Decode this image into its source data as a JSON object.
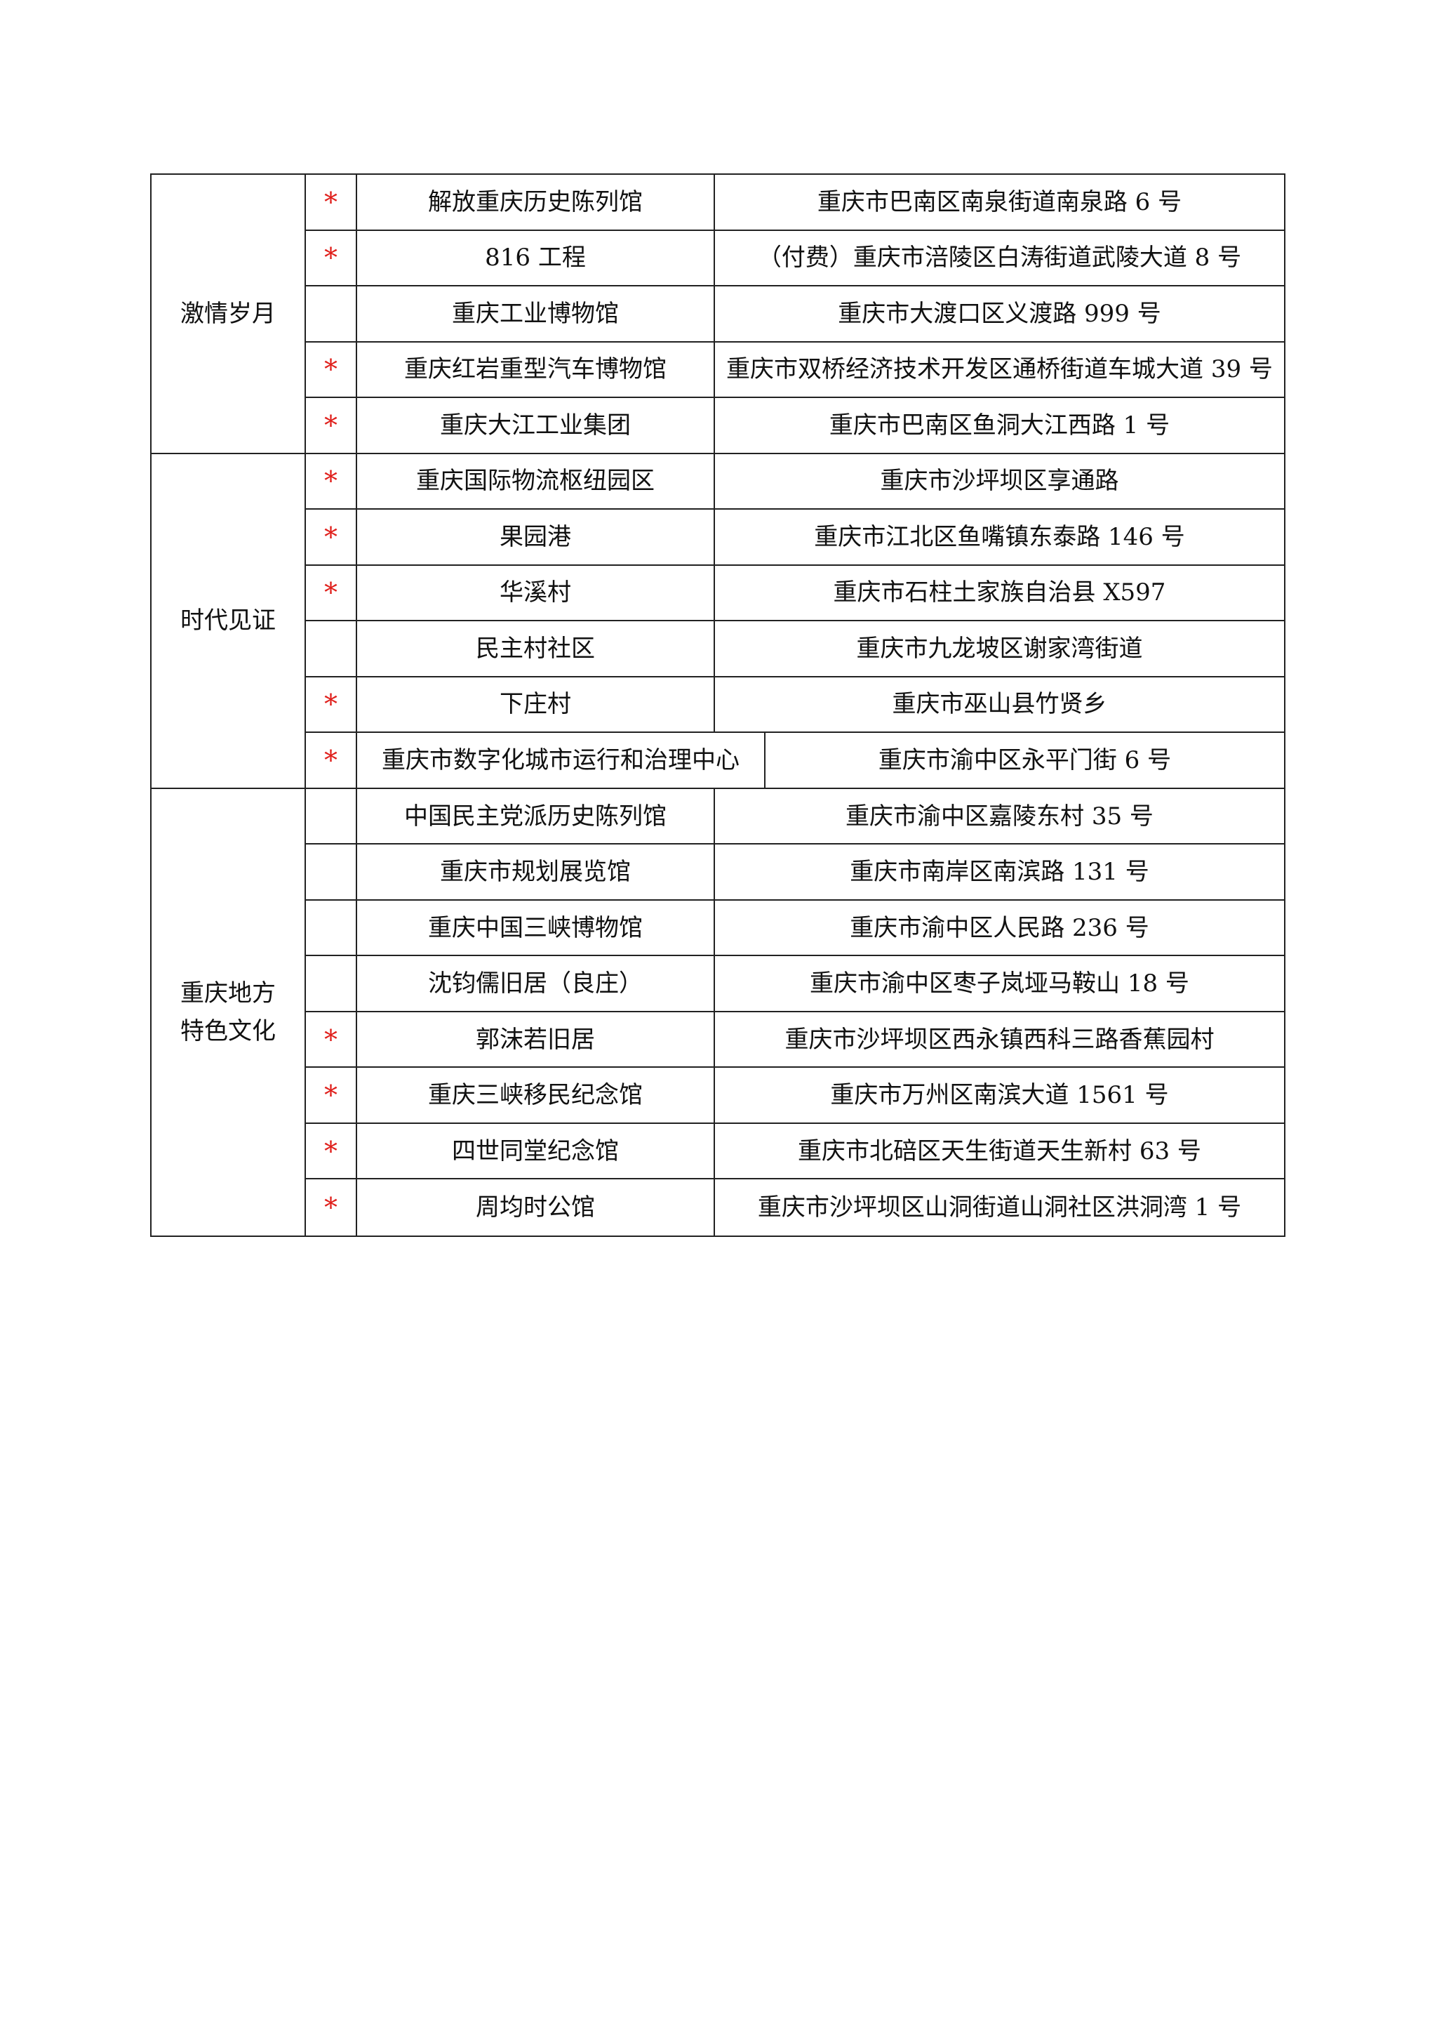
{
  "table": {
    "star_color": "#e0201c",
    "sections": [
      {
        "category": [
          "激情岁月"
        ],
        "rows": [
          {
            "mark": "*",
            "name": "解放重庆历史陈列馆",
            "address": "重庆市巴南区南泉街道南泉路 6 号"
          },
          {
            "mark": "*",
            "name": "816 工程",
            "address": "（付费）重庆市涪陵区白涛街道武陵大道 8 号"
          },
          {
            "mark": "",
            "name": "重庆工业博物馆",
            "address": "重庆市大渡口区义渡路 999 号"
          },
          {
            "mark": "*",
            "name": "重庆红岩重型汽车博物馆",
            "address": "重庆市双桥经济技术开发区通桥街道车城大道 39 号"
          },
          {
            "mark": "*",
            "name": "重庆大江工业集团",
            "address": "重庆市巴南区鱼洞大江西路 1 号"
          }
        ]
      },
      {
        "category": [
          "时代见证"
        ],
        "rows": [
          {
            "mark": "*",
            "name": "重庆国际物流枢纽园区",
            "address": "重庆市沙坪坝区享通路"
          },
          {
            "mark": "*",
            "name": "果园港",
            "address": "重庆市江北区鱼嘴镇东泰路 146 号"
          },
          {
            "mark": "*",
            "name": "华溪村",
            "address": "重庆市石柱土家族自治县 X597"
          },
          {
            "mark": "",
            "name": "民主村社区",
            "address": "重庆市九龙坡区谢家湾街道"
          },
          {
            "mark": "*",
            "name": "下庄村",
            "address": "重庆市巫山县竹贤乡"
          },
          {
            "mark": "*",
            "name": "重庆市数字化城市运行和治理中心",
            "address": "重庆市渝中区永平门街 6 号",
            "wide": true
          }
        ]
      },
      {
        "category": [
          "重庆地方",
          "特色文化"
        ],
        "rows": [
          {
            "mark": "",
            "name": "中国民主党派历史陈列馆",
            "address": "重庆市渝中区嘉陵东村 35 号"
          },
          {
            "mark": "",
            "name": "重庆市规划展览馆",
            "address": "重庆市南岸区南滨路 131 号"
          },
          {
            "mark": "",
            "name": "重庆中国三峡博物馆",
            "address": "重庆市渝中区人民路 236 号"
          },
          {
            "mark": "",
            "name": "沈钧儒旧居（良庄）",
            "address": "重庆市渝中区枣子岚垭马鞍山 18 号"
          },
          {
            "mark": "*",
            "name": "郭沫若旧居",
            "address": "重庆市沙坪坝区西永镇西科三路香蕉园村"
          },
          {
            "mark": "*",
            "name": "重庆三峡移民纪念馆",
            "address": "重庆市万州区南滨大道 1561 号"
          },
          {
            "mark": "*",
            "name": "四世同堂纪念馆",
            "address": "重庆市北碚区天生街道天生新村 63 号"
          },
          {
            "mark": "*",
            "name": "周均时公馆",
            "address": "重庆市沙坪坝区山洞街道山洞社区洪洞湾 1 号"
          }
        ]
      }
    ]
  }
}
